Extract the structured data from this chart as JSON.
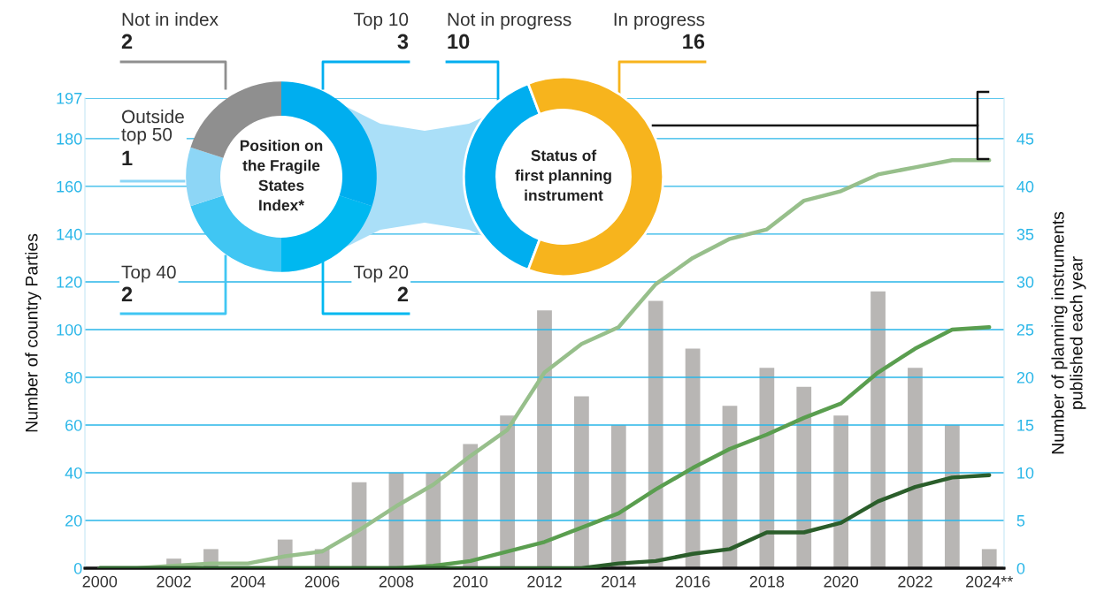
{
  "chart_data": [
    {
      "type": "bar",
      "categories": [
        "2000",
        null,
        "2002",
        null,
        "2004",
        null,
        "2006",
        null,
        "2008",
        null,
        "2010",
        null,
        "2012",
        null,
        "2014",
        null,
        "2016",
        null,
        "2018",
        null,
        "2020",
        null,
        "2022",
        null,
        "2024**"
      ],
      "ylabel": "Number of country Parties",
      "y2label": "Number of planning instruments published each year",
      "ylim": [
        0,
        197
      ],
      "yticks": [
        0,
        20,
        40,
        60,
        80,
        100,
        120,
        140,
        160,
        180,
        197
      ],
      "y2lim": [
        0,
        49.25
      ],
      "y2ticks": [
        0,
        5,
        10,
        15,
        20,
        25,
        30,
        35,
        40,
        45
      ],
      "grid": "y",
      "series": [
        {
          "type": "bar",
          "axis": "y2",
          "color": "#b8b6b4",
          "values": [
            0,
            0,
            1,
            2,
            0,
            3,
            2,
            9,
            10,
            10,
            13,
            16,
            27,
            18,
            15,
            28,
            23,
            17,
            21,
            19,
            16,
            29,
            21,
            15,
            2
          ]
        },
        {
          "type": "line",
          "color": "#97bf8b",
          "values": [
            0,
            0,
            1,
            2,
            2,
            5,
            7,
            16,
            26,
            35,
            47,
            58,
            82,
            94,
            101,
            119,
            130,
            138,
            142,
            154,
            158,
            165,
            168,
            171,
            171
          ]
        },
        {
          "type": "line",
          "color": "#5a9e4f",
          "values": [
            0,
            0,
            0,
            0,
            0,
            0,
            0,
            0,
            0,
            1,
            3,
            7,
            11,
            17,
            23,
            33,
            42,
            50,
            56,
            63,
            69,
            82,
            92,
            100,
            101
          ]
        },
        {
          "type": "line",
          "color": "#2b5e2b",
          "values": [
            0,
            0,
            0,
            0,
            0,
            0,
            0,
            0,
            0,
            0,
            0,
            0,
            0,
            0,
            2,
            3,
            6,
            8,
            15,
            15,
            19,
            28,
            34,
            38,
            39
          ]
        }
      ]
    },
    {
      "type": "donut",
      "title": "Position on the Fragile States Index*",
      "categories": [
        "Top 10",
        "Top 20",
        "Top 40",
        "Outside top 50",
        "Not in index"
      ],
      "values": [
        3,
        2,
        2,
        1,
        2
      ],
      "colors": [
        "#00aeef",
        "#00b8f0",
        "#40c6f3",
        "#8dd6f6",
        "#8f8f8f"
      ],
      "data_labels": true
    },
    {
      "type": "donut",
      "title": "Status of first planning instrument",
      "categories": [
        "Not in progress",
        "In progress"
      ],
      "values": [
        10,
        16
      ],
      "colors": [
        "#00aeef",
        "#f7b41d"
      ],
      "data_labels": true
    }
  ]
}
